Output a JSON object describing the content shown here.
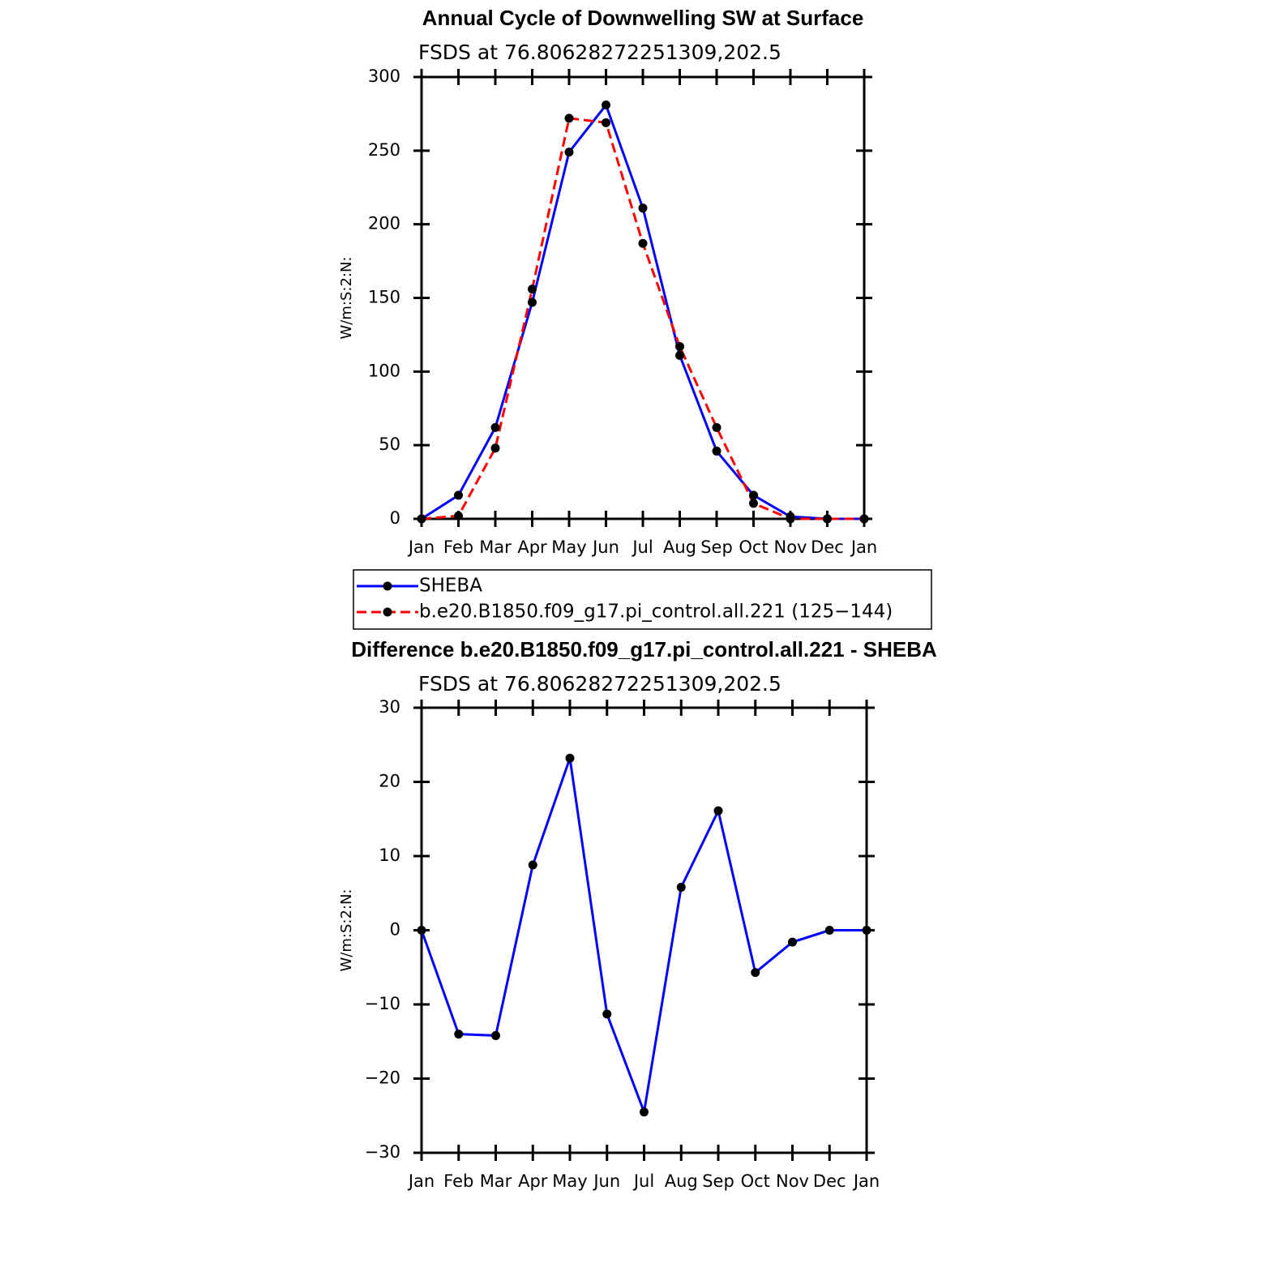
{
  "chart_data": [
    {
      "type": "line",
      "title": "Annual Cycle of Downwelling SW at Surface",
      "subtitle": "FSDS at 76.80628272251309,202.5",
      "ylabel": "W/m:S:2:N:",
      "categories": [
        "Jan",
        "Feb",
        "Mar",
        "Apr",
        "May",
        "Jun",
        "Jul",
        "Aug",
        "Sep",
        "Oct",
        "Nov",
        "Dec",
        "Jan"
      ],
      "series": [
        {
          "name": "SHEBA",
          "color": "#0000ff",
          "linestyle": "solid",
          "marker_color": "#000000",
          "values": [
            0,
            16,
            62,
            147,
            249,
            281,
            211,
            111,
            46,
            16,
            1.5,
            0,
            0
          ]
        },
        {
          "name": "b.e20.B1850.f09_g17.pi_control.all.221 (125−144)",
          "color": "#ff0000",
          "linestyle": "dashed",
          "marker_color": "#000000",
          "values": [
            0,
            2,
            48,
            156,
            272,
            269,
            187,
            117,
            62,
            10.5,
            0,
            0,
            0
          ]
        }
      ],
      "ylim": [
        0,
        300
      ],
      "yticks": [
        0,
        50,
        100,
        150,
        200,
        250,
        300
      ],
      "legend": "below"
    },
    {
      "type": "line",
      "title": "Difference b.e20.B1850.f09_g17.pi_control.all.221 - SHEBA",
      "subtitle": "FSDS at 76.80628272251309,202.5",
      "ylabel": "W/m:S:2:N:",
      "categories": [
        "Jan",
        "Feb",
        "Mar",
        "Apr",
        "May",
        "Jun",
        "Jul",
        "Aug",
        "Sep",
        "Oct",
        "Nov",
        "Dec",
        "Jan"
      ],
      "series": [
        {
          "color": "#0000ff",
          "linestyle": "solid",
          "marker_color": "#000000",
          "values": [
            0,
            -14,
            -14.2,
            8.8,
            23.2,
            -11.3,
            -24.5,
            5.8,
            16.1,
            -5.7,
            -1.6,
            0,
            0
          ]
        }
      ],
      "ylim": [
        -30,
        30
      ],
      "yticks": [
        {
          "value": -30,
          "label": "−30"
        },
        {
          "value": -20,
          "label": "−20"
        },
        {
          "value": -10,
          "label": "−10"
        },
        0,
        10,
        20,
        30
      ]
    }
  ]
}
